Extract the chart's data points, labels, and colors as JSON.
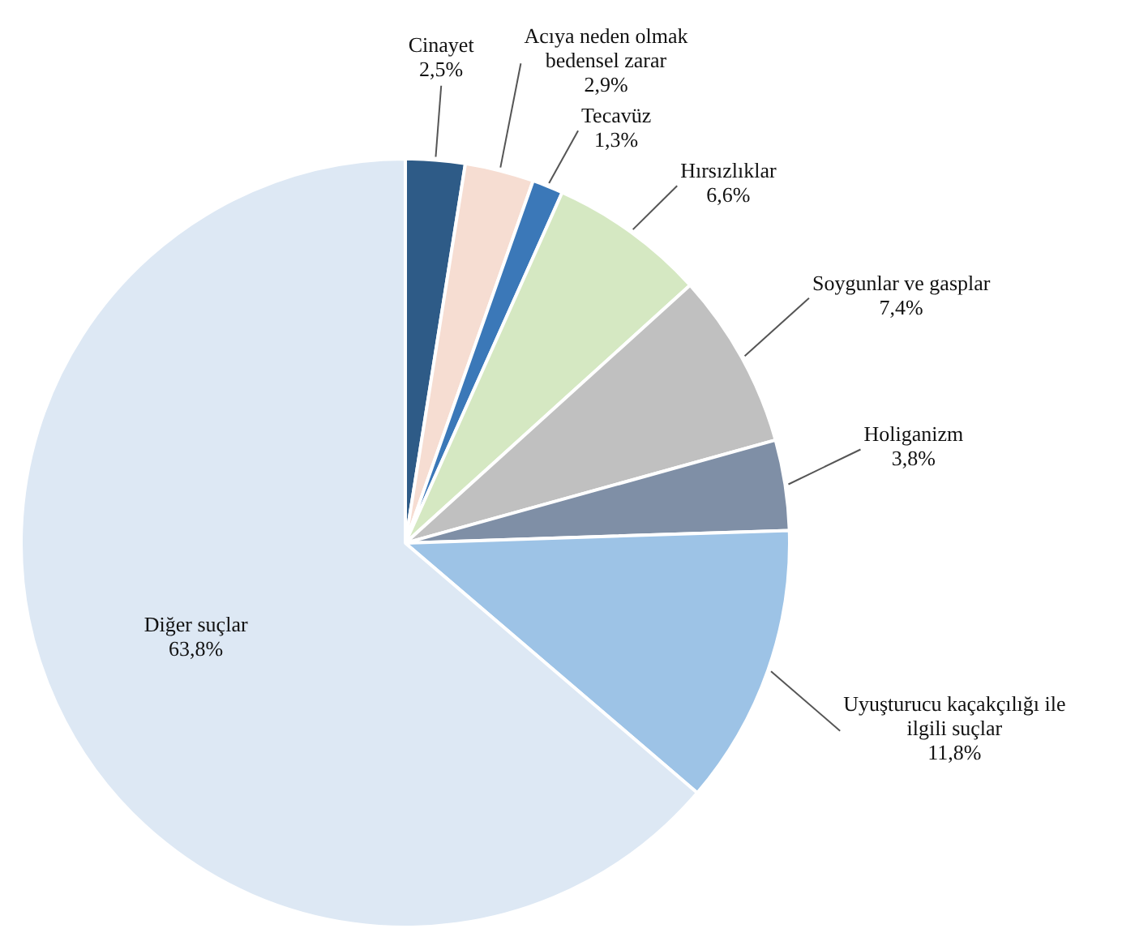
{
  "chart_data": {
    "type": "pie",
    "categories": [
      "Cinayet",
      "Acıya neden olmak bedensel zarar",
      "Tecavüz",
      "Hırsızlıklar",
      "Soygunlar ve gasplar",
      "Holiganizm",
      "Uyuşturucu kaçakçılığı ile ilgili suçlar",
      "Diğer suçlar"
    ],
    "values": [
      2.5,
      2.9,
      1.3,
      6.6,
      7.4,
      3.8,
      11.8,
      63.8
    ],
    "value_labels": [
      "2,5%",
      "2,9%",
      "1,3%",
      "6,6%",
      "7,4%",
      "3,8%",
      "11,8%",
      "63,8%"
    ],
    "colors": [
      "#2e5b87",
      "#f6ddd2",
      "#3b78b8",
      "#d5e8c2",
      "#c0c0c0",
      "#7f8fa6",
      "#9dc3e6",
      "#dde8f4"
    ],
    "legend": false
  }
}
